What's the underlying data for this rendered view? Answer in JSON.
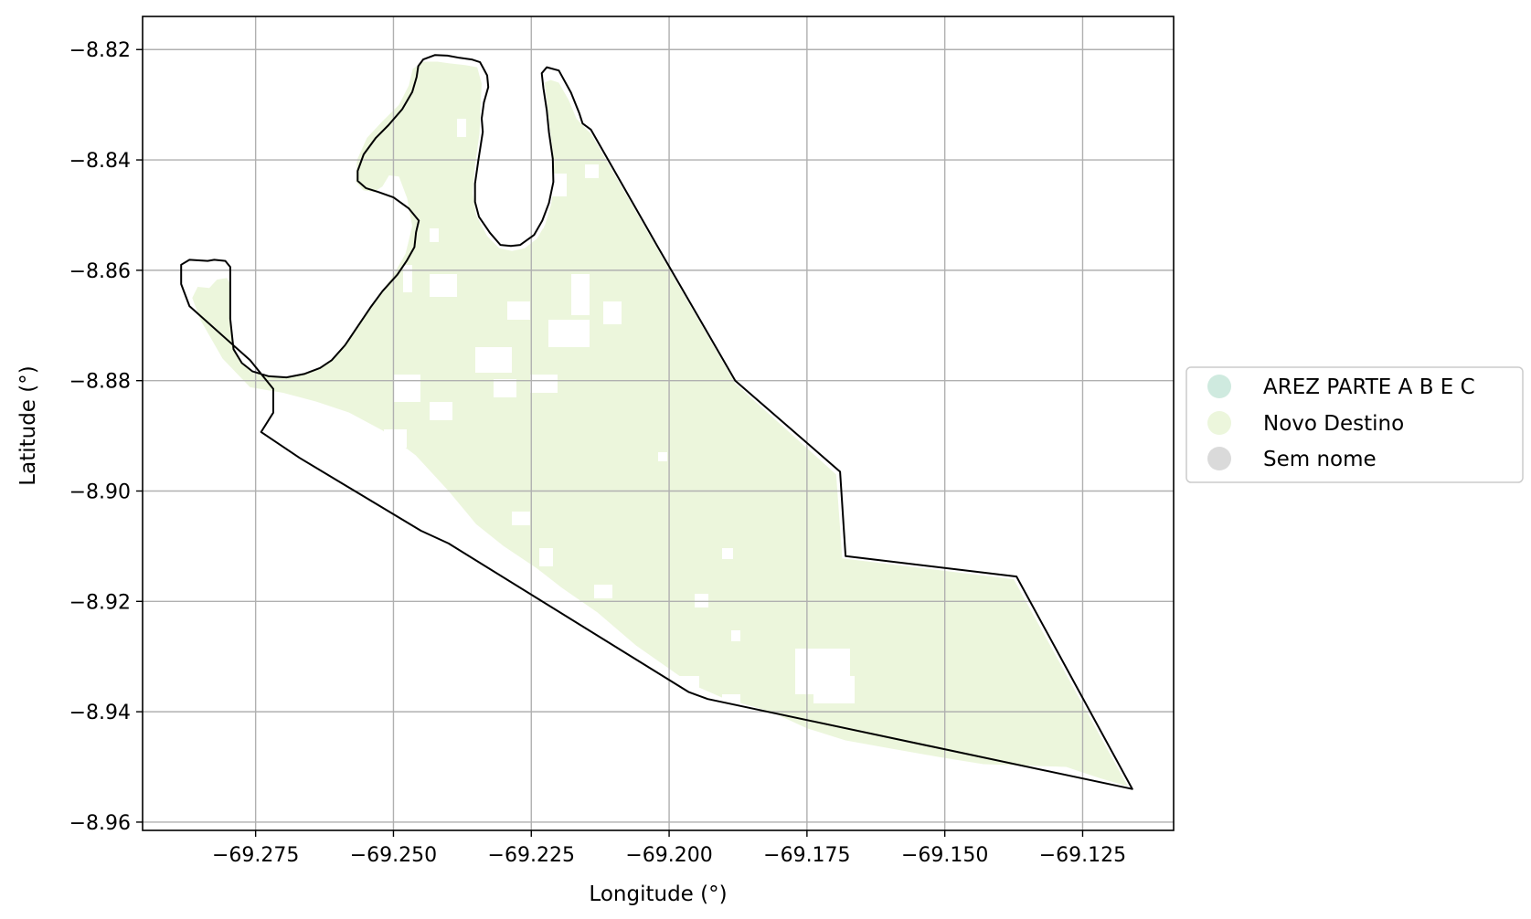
{
  "chart_data": {
    "type": "map",
    "xlabel": "Longitude (°)",
    "ylabel": "Latitude (°)",
    "xlim": [
      -69.2955,
      -69.1085
    ],
    "ylim": [
      -8.9615,
      -8.814
    ],
    "xticks": [
      -69.275,
      -69.25,
      -69.225,
      -69.2,
      -69.175,
      -69.15,
      -69.125
    ],
    "xtick_labels": [
      "−69.275",
      "−69.250",
      "−69.225",
      "−69.200",
      "−69.175",
      "−69.150",
      "−69.125"
    ],
    "yticks": [
      -8.82,
      -8.84,
      -8.86,
      -8.88,
      -8.9,
      -8.92,
      -8.94,
      -8.96
    ],
    "ytick_labels": [
      "−8.82",
      "−8.84",
      "−8.86",
      "−8.88",
      "−8.90",
      "−8.92",
      "−8.94",
      "−8.96"
    ],
    "grid": true,
    "legend": {
      "placement": "right",
      "entries": [
        {
          "label": "AREZ PARTE A B E C",
          "color": "#cfeadf"
        },
        {
          "label": "Novo Destino",
          "color": "#ecf6dc"
        },
        {
          "label": "Sem nome",
          "color": "#dadada"
        }
      ]
    },
    "boundary": [
      [
        -69.2837,
        -8.8583
      ],
      [
        -69.2825,
        -8.8581
      ],
      [
        -69.2805,
        -8.8583
      ],
      [
        -69.2796,
        -8.8594
      ],
      [
        -69.2796,
        -8.8688
      ],
      [
        -69.279,
        -8.8743
      ],
      [
        -69.2775,
        -8.8768
      ],
      [
        -69.2756,
        -8.8783
      ],
      [
        -69.2726,
        -8.8792
      ],
      [
        -69.2694,
        -8.8794
      ],
      [
        -69.2662,
        -8.8788
      ],
      [
        -69.2633,
        -8.8777
      ],
      [
        -69.2612,
        -8.8763
      ],
      [
        -69.2588,
        -8.8736
      ],
      [
        -69.2567,
        -8.8705
      ],
      [
        -69.2542,
        -8.8668
      ],
      [
        -69.252,
        -8.8638
      ],
      [
        -69.2493,
        -8.8608
      ],
      [
        -69.2476,
        -8.8583
      ],
      [
        -69.2462,
        -8.8558
      ],
      [
        -69.2459,
        -8.8531
      ],
      [
        -69.2454,
        -8.851
      ],
      [
        -69.2472,
        -8.8488
      ],
      [
        -69.25,
        -8.8468
      ],
      [
        -69.2528,
        -8.8458
      ],
      [
        -69.255,
        -8.8451
      ],
      [
        -69.2565,
        -8.8438
      ],
      [
        -69.2565,
        -8.842
      ],
      [
        -69.2554,
        -8.839
      ],
      [
        -69.2532,
        -8.836
      ],
      [
        -69.2509,
        -8.8337
      ],
      [
        -69.2484,
        -8.8308
      ],
      [
        -69.2466,
        -8.8277
      ],
      [
        -69.2458,
        -8.825
      ],
      [
        -69.2455,
        -8.823
      ],
      [
        -69.2446,
        -8.8218
      ],
      [
        -69.2425,
        -8.821
      ],
      [
        -69.2402,
        -8.8211
      ],
      [
        -69.238,
        -8.8215
      ],
      [
        -69.2358,
        -8.8218
      ],
      [
        -69.2343,
        -8.8223
      ],
      [
        -69.2338,
        -8.8232
      ],
      [
        -69.233,
        -8.8247
      ],
      [
        -69.2328,
        -8.8268
      ],
      [
        -69.2336,
        -8.8296
      ],
      [
        -69.234,
        -8.8325
      ],
      [
        -69.2338,
        -8.8349
      ],
      [
        -69.2346,
        -8.84
      ],
      [
        -69.2352,
        -8.8443
      ],
      [
        -69.2352,
        -8.8476
      ],
      [
        -69.2345,
        -8.8503
      ],
      [
        -69.2325,
        -8.8532
      ],
      [
        -69.2306,
        -8.8554
      ],
      [
        -69.2287,
        -8.8556
      ],
      [
        -69.227,
        -8.8554
      ],
      [
        -69.2245,
        -8.8536
      ],
      [
        -69.223,
        -8.851
      ],
      [
        -69.2218,
        -8.8478
      ],
      [
        -69.221,
        -8.844
      ],
      [
        -69.2211,
        -8.8398
      ],
      [
        -69.2218,
        -8.835
      ],
      [
        -69.2222,
        -8.831
      ],
      [
        -69.2228,
        -8.827
      ],
      [
        -69.2231,
        -8.8243
      ],
      [
        -69.2222,
        -8.8232
      ],
      [
        -69.22,
        -8.8238
      ],
      [
        -69.2178,
        -8.8278
      ],
      [
        -69.2163,
        -8.8315
      ],
      [
        -69.2157,
        -8.8334
      ],
      [
        -69.2142,
        -8.8345
      ],
      [
        -69.2022,
        -8.8555
      ],
      [
        -69.188,
        -8.88
      ],
      [
        -69.169,
        -8.8965
      ],
      [
        -69.168,
        -8.9118
      ],
      [
        -69.137,
        -8.9155
      ],
      [
        -69.116,
        -8.954
      ],
      [
        -69.193,
        -8.9377
      ],
      [
        -69.1965,
        -8.9364
      ],
      [
        -69.24,
        -8.9095
      ],
      [
        -69.245,
        -8.9072
      ],
      [
        -69.267,
        -8.894
      ],
      [
        -69.274,
        -8.8893
      ],
      [
        -69.2718,
        -8.8858
      ],
      [
        -69.2718,
        -8.8815
      ],
      [
        -69.276,
        -8.8763
      ],
      [
        -69.287,
        -8.8665
      ],
      [
        -69.2885,
        -8.8625
      ],
      [
        -69.2885,
        -8.859
      ],
      [
        -69.287,
        -8.8581
      ],
      [
        -69.2837,
        -8.8583
      ]
    ],
    "novo_destino_area": [
      [
        -69.2834,
        -8.8632
      ],
      [
        -69.282,
        -8.8617
      ],
      [
        -69.2802,
        -8.8614
      ],
      [
        -69.2796,
        -8.8625
      ],
      [
        -69.2796,
        -8.8688
      ],
      [
        -69.279,
        -8.8743
      ],
      [
        -69.2775,
        -8.8768
      ],
      [
        -69.2756,
        -8.8783
      ],
      [
        -69.2726,
        -8.8792
      ],
      [
        -69.2694,
        -8.8794
      ],
      [
        -69.2662,
        -8.8788
      ],
      [
        -69.2633,
        -8.8777
      ],
      [
        -69.2612,
        -8.8763
      ],
      [
        -69.2588,
        -8.8736
      ],
      [
        -69.2567,
        -8.8705
      ],
      [
        -69.2542,
        -8.8668
      ],
      [
        -69.252,
        -8.8638
      ],
      [
        -69.25,
        -8.8608
      ],
      [
        -69.2478,
        -8.857
      ],
      [
        -69.2466,
        -8.852
      ],
      [
        -69.2475,
        -8.847
      ],
      [
        -69.249,
        -8.843
      ],
      [
        -69.2508,
        -8.8428
      ],
      [
        -69.252,
        -8.8448
      ],
      [
        -69.2535,
        -8.8458
      ],
      [
        -69.2555,
        -8.8455
      ],
      [
        -69.2568,
        -8.844
      ],
      [
        -69.2566,
        -8.84
      ],
      [
        -69.2548,
        -8.836
      ],
      [
        -69.252,
        -8.833
      ],
      [
        -69.249,
        -8.83
      ],
      [
        -69.2472,
        -8.8265
      ],
      [
        -69.2465,
        -8.8235
      ],
      [
        -69.2445,
        -8.8222
      ],
      [
        -69.242,
        -8.8222
      ],
      [
        -69.24,
        -8.8225
      ],
      [
        -69.237,
        -8.8228
      ],
      [
        -69.2348,
        -8.8232
      ],
      [
        -69.234,
        -8.8262
      ],
      [
        -69.2342,
        -8.83
      ],
      [
        -69.2344,
        -8.8352
      ],
      [
        -69.2352,
        -8.841
      ],
      [
        -69.2356,
        -8.846
      ],
      [
        -69.235,
        -8.85
      ],
      [
        -69.233,
        -8.8538
      ],
      [
        -69.2308,
        -8.856
      ],
      [
        -69.2285,
        -8.8565
      ],
      [
        -69.2262,
        -8.856
      ],
      [
        -69.224,
        -8.8543
      ],
      [
        -69.2225,
        -8.8518
      ],
      [
        -69.2214,
        -8.848
      ],
      [
        -69.2208,
        -8.844
      ],
      [
        -69.221,
        -8.8395
      ],
      [
        -69.2216,
        -8.8345
      ],
      [
        -69.2221,
        -8.83
      ],
      [
        -69.2226,
        -8.826
      ],
      [
        -69.2215,
        -8.8255
      ],
      [
        -69.22,
        -8.826
      ],
      [
        -69.2182,
        -8.8292
      ],
      [
        -69.2168,
        -8.8325
      ],
      [
        -69.215,
        -8.8345
      ],
      [
        -69.2142,
        -8.8352
      ],
      [
        -69.2022,
        -8.856
      ],
      [
        -69.188,
        -8.8805
      ],
      [
        -69.1697,
        -8.897
      ],
      [
        -69.1686,
        -8.9122
      ],
      [
        -69.1375,
        -8.916
      ],
      [
        -69.1168,
        -8.9535
      ],
      [
        -69.122,
        -8.952
      ],
      [
        -69.128,
        -8.95
      ],
      [
        -69.1345,
        -8.9498
      ],
      [
        -69.143,
        -8.9495
      ],
      [
        -69.151,
        -8.9482
      ],
      [
        -69.159,
        -8.9468
      ],
      [
        -69.168,
        -8.9452
      ],
      [
        -69.175,
        -8.943
      ],
      [
        -69.1815,
        -8.94
      ],
      [
        -69.19,
        -8.9376
      ],
      [
        -69.196,
        -8.935
      ],
      [
        -69.206,
        -8.928
      ],
      [
        -69.213,
        -8.922
      ],
      [
        -69.2195,
        -8.9175
      ],
      [
        -69.224,
        -8.914
      ],
      [
        -69.23,
        -8.91
      ],
      [
        -69.235,
        -8.906
      ],
      [
        -69.24,
        -8.9
      ],
      [
        -69.246,
        -8.8935
      ],
      [
        -69.252,
        -8.889
      ],
      [
        -69.258,
        -8.8858
      ],
      [
        -69.264,
        -8.8838
      ],
      [
        -69.27,
        -8.8822
      ],
      [
        -69.276,
        -8.8812
      ],
      [
        -69.281,
        -8.876
      ],
      [
        -69.285,
        -8.869
      ],
      [
        -69.2865,
        -8.865
      ],
      [
        -69.2855,
        -8.863
      ],
      [
        -69.2834,
        -8.8632
      ]
    ]
  }
}
